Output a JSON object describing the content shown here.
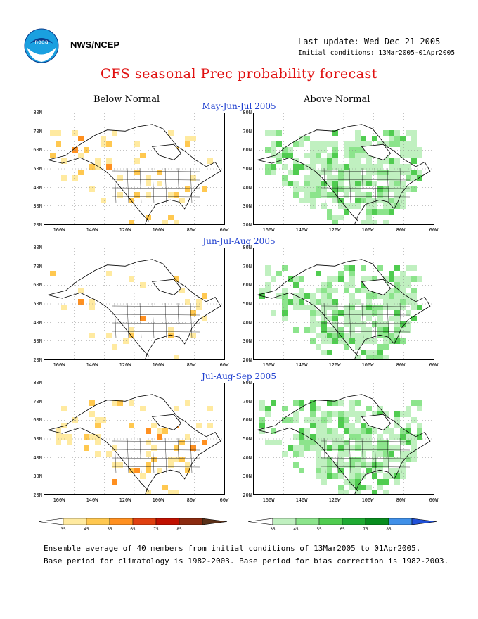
{
  "header": {
    "org": "NWS/NCEP",
    "last_update": "Last update: Wed Dec 21 2005",
    "initial_conditions": "Initial conditions: 13Mar2005-01Apr2005",
    "logo_text": "noaa"
  },
  "title": "CFS seasonal Prec probability forecast",
  "columns": {
    "left": "Below Normal",
    "right": "Above Normal"
  },
  "periods": [
    "May-Jun-Jul 2005",
    "Jun-Jul-Aug 2005",
    "Jul-Aug-Sep 2005"
  ],
  "axes": {
    "y_ticks": [
      "80N",
      "70N",
      "60N",
      "50N",
      "40N",
      "30N",
      "20N"
    ],
    "x_ticks": [
      "160W",
      "140W",
      "120W",
      "100W",
      "80W",
      "60W"
    ]
  },
  "legends": {
    "below": {
      "ticks": [
        "35",
        "45",
        "55",
        "65",
        "75",
        "85"
      ],
      "colors": [
        "#ffeaa0",
        "#ffc850",
        "#ff9020",
        "#e04010",
        "#c01000",
        "#8b2a10",
        "#5a3018"
      ]
    },
    "above": {
      "ticks": [
        "35",
        "45",
        "55",
        "65",
        "75",
        "85"
      ],
      "colors": [
        "#c0f0c0",
        "#8ce48c",
        "#50cc50",
        "#1eaa32",
        "#078c1e",
        "#4090e8",
        "#2050d8"
      ]
    }
  },
  "footer": {
    "line1": "Ensemble average of 40 members from initial conditions of 13Mar2005 to 01Apr2005.",
    "line2": "Base period for climatology is 1982-2003. Base period for bias correction is 1982-2003."
  }
}
